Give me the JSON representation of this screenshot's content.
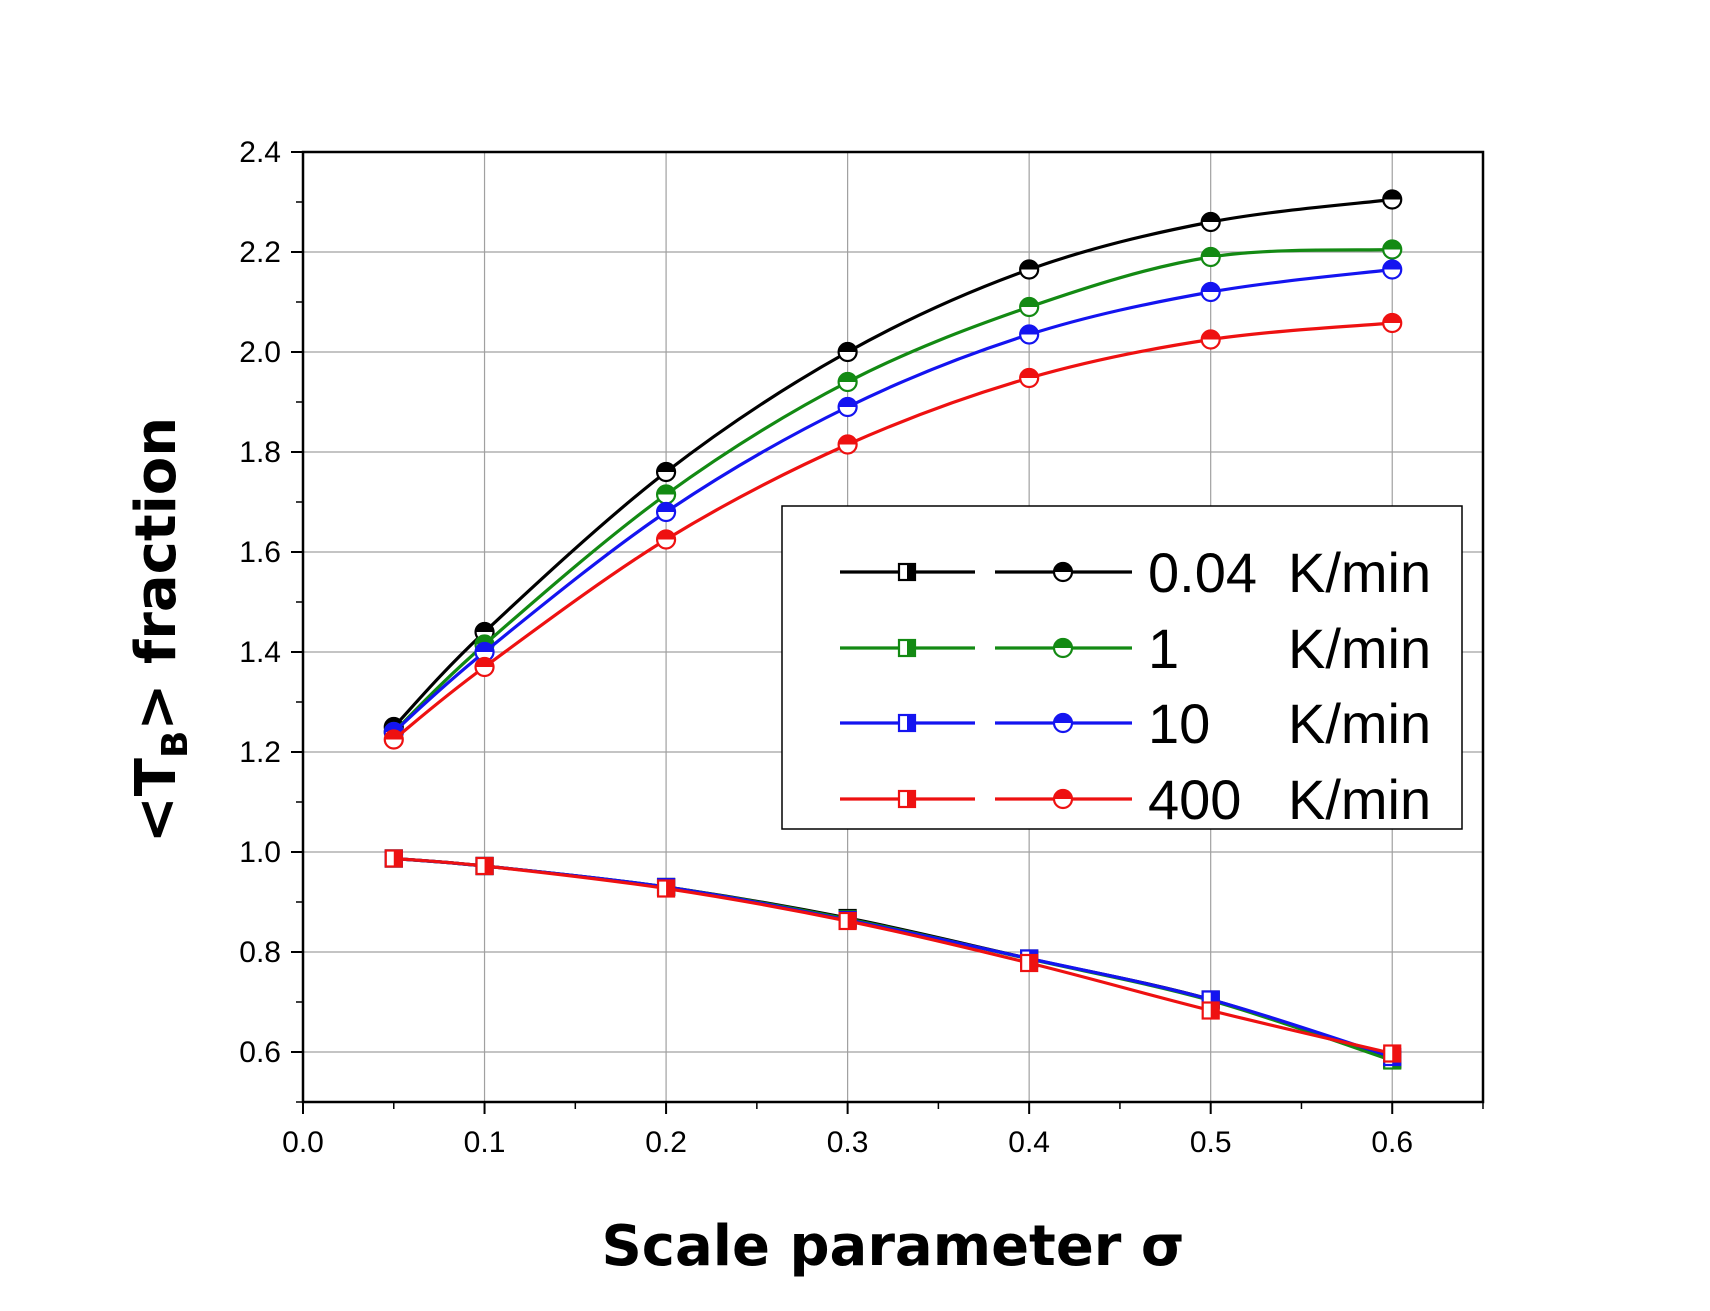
{
  "chart_data": {
    "type": "line",
    "xlabel": "Scale parameter σ",
    "ylabel_parts": {
      "prefix": "<T",
      "subscript": "B",
      "suffix": "> fraction"
    },
    "xlim": [
      0.0,
      0.65
    ],
    "ylim": [
      0.5,
      2.4
    ],
    "x_ticks": [
      "0.0",
      "0.1",
      "0.2",
      "0.3",
      "0.4",
      "0.5",
      "0.6"
    ],
    "y_ticks": [
      "0.6",
      "0.8",
      "1.0",
      "1.2",
      "1.4",
      "1.6",
      "1.8",
      "2.0",
      "2.2",
      "2.4"
    ],
    "grid": true,
    "legend_position": "center-right",
    "x": [
      0.05,
      0.1,
      0.2,
      0.3,
      0.4,
      0.5,
      0.6
    ],
    "series": [
      {
        "rate": "0.04",
        "unit": "K/min",
        "color": "#000000",
        "circles": [
          1.25,
          1.44,
          1.76,
          2.0,
          2.165,
          2.26,
          2.305
        ],
        "squares": [
          0.987,
          0.972,
          0.93,
          0.868,
          0.787,
          0.705,
          0.585
        ]
      },
      {
        "rate": "1",
        "unit": "K/min",
        "color": "#138a13",
        "circles": [
          1.24,
          1.415,
          1.715,
          1.94,
          2.09,
          2.19,
          2.205
        ],
        "squares": [
          0.987,
          0.972,
          0.93,
          0.866,
          0.786,
          0.703,
          0.583
        ]
      },
      {
        "rate": "10",
        "unit": "K/min",
        "color": "#1414f0",
        "circles": [
          1.24,
          1.4,
          1.68,
          1.89,
          2.035,
          2.12,
          2.165
        ],
        "squares": [
          0.987,
          0.972,
          0.93,
          0.864,
          0.787,
          0.705,
          0.59
        ]
      },
      {
        "rate": "400",
        "unit": "K/min",
        "color": "#ee1111",
        "circles": [
          1.225,
          1.37,
          1.625,
          1.815,
          1.948,
          2.025,
          2.058
        ],
        "squares": [
          0.987,
          0.972,
          0.927,
          0.862,
          0.778,
          0.683,
          0.597
        ]
      }
    ]
  }
}
